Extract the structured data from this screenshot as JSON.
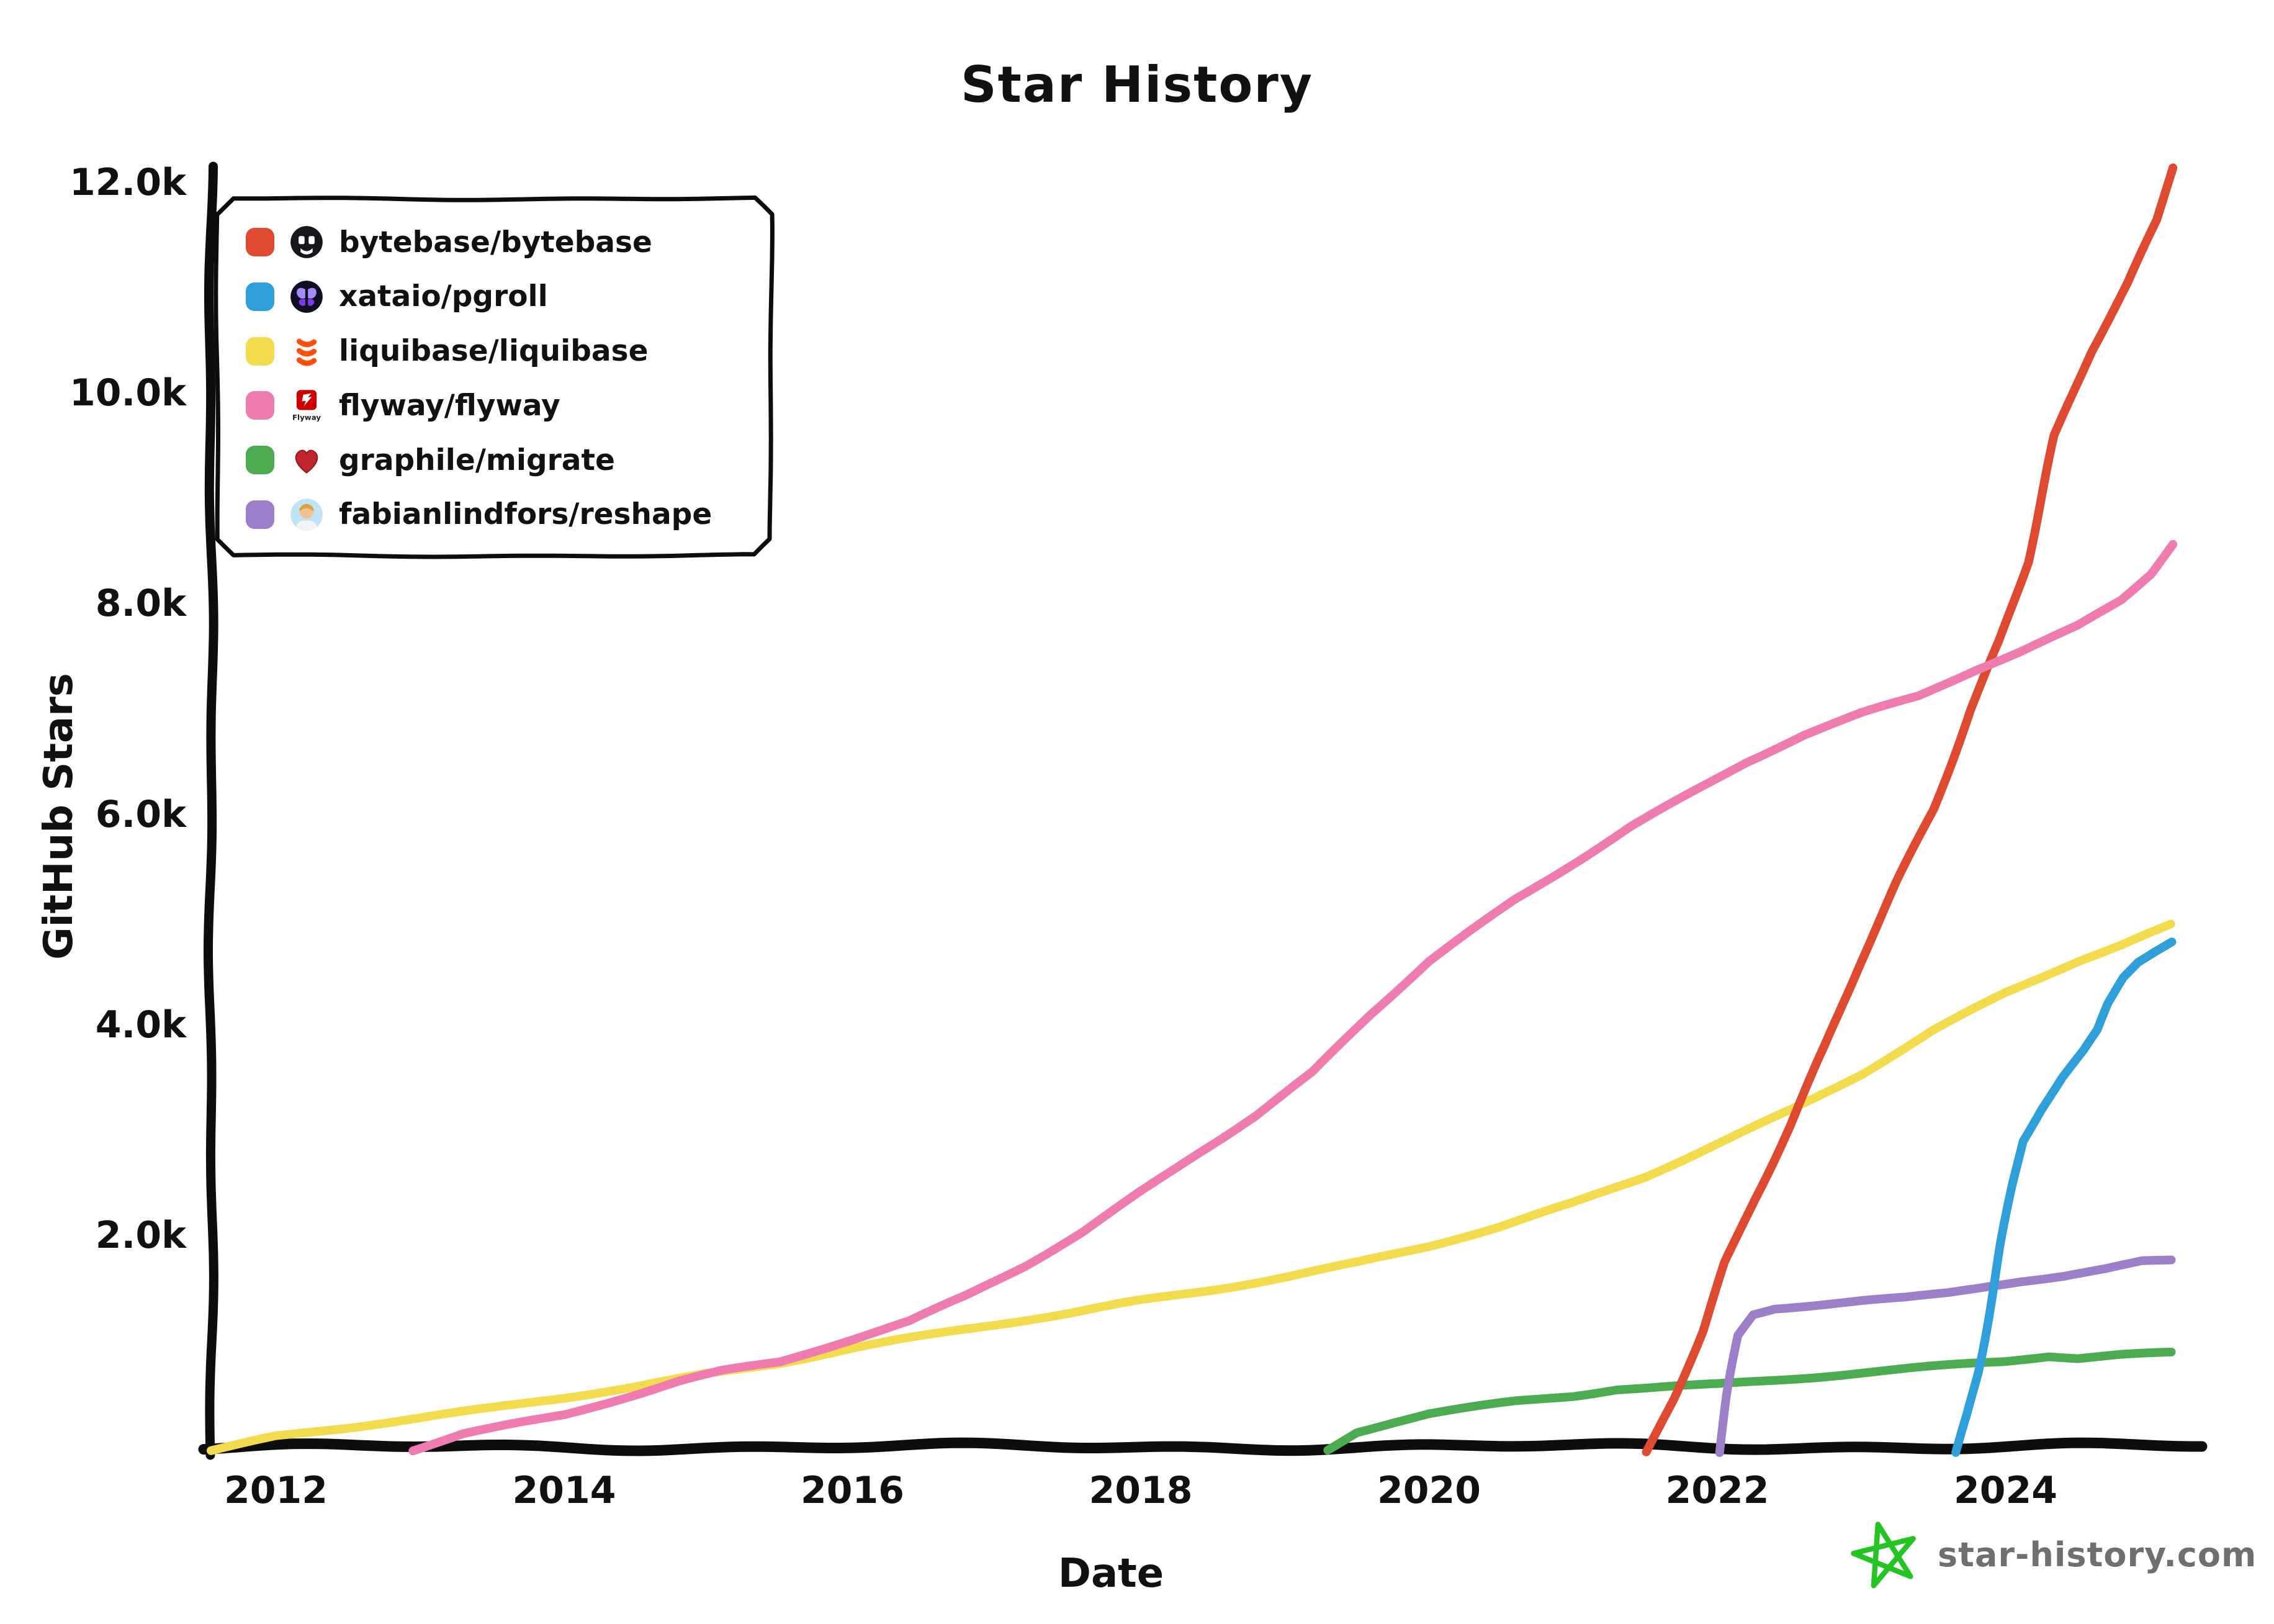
{
  "title": "Star History",
  "axes": {
    "x_label": "Date",
    "y_label": "GitHub Stars",
    "x_ticks": [
      {
        "label": "2012",
        "value": 2012
      },
      {
        "label": "2014",
        "value": 2014
      },
      {
        "label": "2016",
        "value": 2016
      },
      {
        "label": "2018",
        "value": 2018
      },
      {
        "label": "2020",
        "value": 2020
      },
      {
        "label": "2022",
        "value": 2022
      },
      {
        "label": "2024",
        "value": 2024
      }
    ],
    "y_ticks": [
      {
        "label": "2.0k",
        "value": 2000
      },
      {
        "label": "4.0k",
        "value": 4000
      },
      {
        "label": "6.0k",
        "value": 6000
      },
      {
        "label": "8.0k",
        "value": 8000
      },
      {
        "label": "10.0k",
        "value": 10000
      },
      {
        "label": "12.0k",
        "value": 12000
      }
    ]
  },
  "legend": [
    {
      "label": "bytebase/bytebase",
      "color": "#de4a2f",
      "icon": "bytebase-logo"
    },
    {
      "label": "xataio/pgroll",
      "color": "#2f9fd9",
      "icon": "xata-butterfly-logo"
    },
    {
      "label": "liquibase/liquibase",
      "color": "#f2dc4e",
      "icon": "liquibase-logo"
    },
    {
      "label": "flyway/flyway",
      "color": "#ee7cae",
      "icon": "flyway-logo"
    },
    {
      "label": "graphile/migrate",
      "color": "#4cab51",
      "icon": "graphile-heart-logo"
    },
    {
      "label": "fabianlindfors/reshape",
      "color": "#9b7fc9",
      "icon": "avatar"
    }
  ],
  "footer": {
    "text": "star-history.com",
    "star_color": "#25c425",
    "text_color": "#6f6f6f"
  },
  "chart_data": {
    "type": "line",
    "title": "Star History",
    "xlabel": "Date",
    "ylabel": "GitHub Stars",
    "x_unit": "decimal_year",
    "xlim": [
      2011.55,
      2025.35
    ],
    "ylim": [
      0,
      12350
    ],
    "grid": false,
    "legend_position": "top-left",
    "style": "hand-drawn (xkcd)",
    "series": [
      {
        "name": "bytebase/bytebase",
        "color": "#de4a2f",
        "points": [
          [
            2021.52,
            -60
          ],
          [
            2021.7,
            450
          ],
          [
            2021.9,
            1100
          ],
          [
            2022.05,
            1750
          ],
          [
            2022.25,
            2350
          ],
          [
            2022.5,
            3050
          ],
          [
            2022.75,
            3800
          ],
          [
            2023.0,
            4600
          ],
          [
            2023.25,
            5350
          ],
          [
            2023.5,
            6050
          ],
          [
            2023.75,
            7000
          ],
          [
            2023.95,
            7650
          ],
          [
            2024.15,
            8400
          ],
          [
            2024.35,
            9600
          ],
          [
            2024.6,
            10400
          ],
          [
            2024.85,
            11050
          ],
          [
            2025.05,
            11650
          ],
          [
            2025.15,
            12150
          ]
        ]
      },
      {
        "name": "xataio/pgroll",
        "color": "#2f9fd9",
        "points": [
          [
            2023.66,
            -60
          ],
          [
            2023.73,
            300
          ],
          [
            2023.8,
            700
          ],
          [
            2023.88,
            1300
          ],
          [
            2023.96,
            1900
          ],
          [
            2024.05,
            2500
          ],
          [
            2024.12,
            2900
          ],
          [
            2024.25,
            3200
          ],
          [
            2024.4,
            3500
          ],
          [
            2024.55,
            3750
          ],
          [
            2024.65,
            3950
          ],
          [
            2024.72,
            4200
          ],
          [
            2024.82,
            4450
          ],
          [
            2024.92,
            4600
          ],
          [
            2025.03,
            4700
          ],
          [
            2025.15,
            4800
          ]
        ]
      },
      {
        "name": "liquibase/liquibase",
        "color": "#f2dc4e",
        "points": [
          [
            2011.55,
            -40
          ],
          [
            2012.0,
            90
          ],
          [
            2012.5,
            170
          ],
          [
            2013.0,
            260
          ],
          [
            2013.5,
            360
          ],
          [
            2014.0,
            470
          ],
          [
            2014.5,
            580
          ],
          [
            2015.0,
            700
          ],
          [
            2015.5,
            800
          ],
          [
            2016.0,
            930
          ],
          [
            2016.5,
            1040
          ],
          [
            2017.0,
            1150
          ],
          [
            2017.5,
            1260
          ],
          [
            2018.0,
            1390
          ],
          [
            2018.5,
            1500
          ],
          [
            2019.0,
            1620
          ],
          [
            2019.5,
            1750
          ],
          [
            2020.0,
            1900
          ],
          [
            2020.5,
            2080
          ],
          [
            2021.0,
            2300
          ],
          [
            2021.5,
            2560
          ],
          [
            2022.0,
            2880
          ],
          [
            2022.5,
            3200
          ],
          [
            2023.0,
            3550
          ],
          [
            2023.5,
            3950
          ],
          [
            2024.0,
            4300
          ],
          [
            2024.5,
            4600
          ],
          [
            2024.8,
            4750
          ],
          [
            2025.15,
            4950
          ]
        ]
      },
      {
        "name": "flyway/flyway",
        "color": "#ee7cae",
        "points": [
          [
            2012.95,
            -40
          ],
          [
            2013.3,
            120
          ],
          [
            2013.7,
            230
          ],
          [
            2014.0,
            310
          ],
          [
            2014.4,
            470
          ],
          [
            2014.8,
            630
          ],
          [
            2015.1,
            720
          ],
          [
            2015.5,
            800
          ],
          [
            2016.0,
            1010
          ],
          [
            2016.4,
            1180
          ],
          [
            2016.8,
            1430
          ],
          [
            2017.2,
            1720
          ],
          [
            2017.6,
            2050
          ],
          [
            2018.0,
            2430
          ],
          [
            2018.4,
            2800
          ],
          [
            2018.8,
            3150
          ],
          [
            2019.2,
            3550
          ],
          [
            2019.6,
            4100
          ],
          [
            2020.0,
            4600
          ],
          [
            2020.3,
            4900
          ],
          [
            2020.6,
            5200
          ],
          [
            2021.0,
            5550
          ],
          [
            2021.4,
            5900
          ],
          [
            2021.8,
            6200
          ],
          [
            2022.2,
            6500
          ],
          [
            2022.6,
            6750
          ],
          [
            2023.0,
            6950
          ],
          [
            2023.4,
            7120
          ],
          [
            2023.8,
            7380
          ],
          [
            2024.1,
            7550
          ],
          [
            2024.5,
            7800
          ],
          [
            2024.8,
            8050
          ],
          [
            2025.0,
            8300
          ],
          [
            2025.15,
            8580
          ]
        ]
      },
      {
        "name": "graphile/migrate",
        "color": "#4cab51",
        "points": [
          [
            2019.3,
            -40
          ],
          [
            2019.5,
            130
          ],
          [
            2019.75,
            220
          ],
          [
            2020.0,
            300
          ],
          [
            2020.3,
            360
          ],
          [
            2020.6,
            420
          ],
          [
            2021.0,
            480
          ],
          [
            2021.3,
            550
          ],
          [
            2021.7,
            580
          ],
          [
            2022.0,
            600
          ],
          [
            2022.4,
            640
          ],
          [
            2022.8,
            680
          ],
          [
            2023.2,
            720
          ],
          [
            2023.6,
            760
          ],
          [
            2024.0,
            800
          ],
          [
            2024.3,
            850
          ],
          [
            2024.5,
            830
          ],
          [
            2024.8,
            865
          ],
          [
            2025.15,
            890
          ]
        ]
      },
      {
        "name": "fabianlindfors/reshape",
        "color": "#9b7fc9",
        "points": [
          [
            2022.02,
            -60
          ],
          [
            2022.08,
            500
          ],
          [
            2022.15,
            1050
          ],
          [
            2022.25,
            1250
          ],
          [
            2022.4,
            1310
          ],
          [
            2022.7,
            1350
          ],
          [
            2023.0,
            1390
          ],
          [
            2023.3,
            1420
          ],
          [
            2023.6,
            1470
          ],
          [
            2023.9,
            1540
          ],
          [
            2024.1,
            1580
          ],
          [
            2024.4,
            1620
          ],
          [
            2024.7,
            1680
          ],
          [
            2024.95,
            1750
          ],
          [
            2025.15,
            1760
          ]
        ]
      }
    ],
    "draw_order": [
      "liquibase/liquibase",
      "graphile/migrate",
      "fabianlindfors/reshape",
      "bytebase/bytebase",
      "flyway/flyway",
      "xataio/pgroll"
    ]
  }
}
